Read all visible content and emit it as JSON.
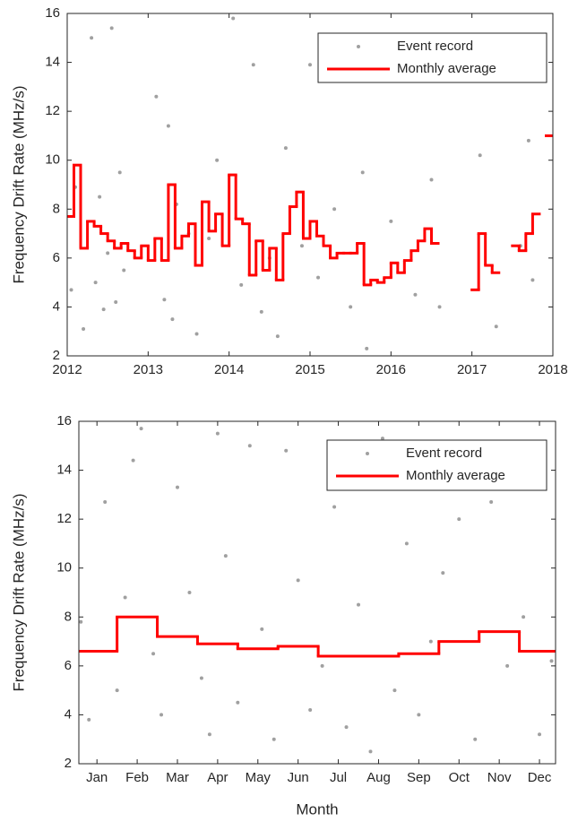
{
  "chart_data": [
    {
      "type": "scatter",
      "ylabel": "Frequency Drift Rate (MHz/s)",
      "xlim": [
        2012,
        2018
      ],
      "xticks": [
        2012,
        2013,
        2014,
        2015,
        2016,
        2017,
        2018
      ],
      "ylim": [
        2,
        16
      ],
      "yticks": [
        2,
        4,
        6,
        8,
        10,
        12,
        14,
        16
      ],
      "legend": "upper right",
      "series": [
        {
          "name": "Event record",
          "color": "#a0a0a0",
          "mode": "markers",
          "x": [
            2012.05,
            2012.1,
            2012.2,
            2012.3,
            2012.35,
            2012.4,
            2012.45,
            2012.5,
            2012.55,
            2012.6,
            2012.65,
            2012.7,
            2013.1,
            2013.2,
            2013.25,
            2013.3,
            2013.35,
            2013.5,
            2013.6,
            2013.75,
            2013.85,
            2014.05,
            2014.15,
            2014.3,
            2014.4,
            2014.5,
            2014.6,
            2014.7,
            2014.9,
            2015.0,
            2015.1,
            2015.3,
            2015.5,
            2015.65,
            2015.7,
            2016.0,
            2016.3,
            2016.5,
            2016.6,
            2017.1,
            2017.3,
            2017.6,
            2017.7,
            2017.75,
            2017.85
          ],
          "values": [
            4.7,
            8.9,
            3.1,
            15.0,
            5.0,
            8.5,
            3.9,
            6.2,
            15.4,
            4.2,
            9.5,
            5.5,
            12.6,
            4.3,
            11.4,
            3.5,
            8.2,
            7.0,
            2.9,
            6.8,
            10.0,
            15.8,
            4.9,
            13.9,
            3.8,
            6.0,
            2.8,
            10.5,
            6.5,
            13.9,
            5.2,
            8.0,
            4.0,
            9.5,
            2.3,
            7.5,
            4.5,
            9.2,
            4.0,
            10.2,
            3.2,
            6.5,
            10.8,
            5.1,
            13.9
          ]
        },
        {
          "name": "Monthly average",
          "color": "#ff0000",
          "mode": "steps",
          "x": [
            2012,
            2012.083,
            2012.167,
            2012.25,
            2012.333,
            2012.417,
            2012.5,
            2012.583,
            2012.667,
            2012.75,
            2012.833,
            2012.917,
            2013,
            2013.083,
            2013.167,
            2013.25,
            2013.333,
            2013.417,
            2013.5,
            2013.583,
            2013.667,
            2013.75,
            2013.833,
            2013.917,
            2014,
            2014.083,
            2014.167,
            2014.25,
            2014.333,
            2014.417,
            2014.5,
            2014.583,
            2014.667,
            2014.75,
            2014.833,
            2014.917,
            2015,
            2015.083,
            2015.167,
            2015.25,
            2015.333,
            2015.417,
            2015.5,
            2015.583,
            2015.667,
            2015.75,
            2015.833,
            2015.917,
            2016,
            2016.083,
            2016.167,
            2016.25,
            2016.333,
            2016.417,
            2016.5,
            2016.583,
            2016.667,
            2016.75,
            2016.833,
            2016.917,
            2017,
            2017.083,
            2017.167,
            2017.25,
            2017.333,
            2017.417,
            2017.5,
            2017.583,
            2017.667,
            2017.75,
            2017.833,
            2017.917
          ],
          "values": [
            7.7,
            9.8,
            6.4,
            7.5,
            7.3,
            7.0,
            6.7,
            6.4,
            6.6,
            6.3,
            6.0,
            6.5,
            5.9,
            6.8,
            5.9,
            9.0,
            6.4,
            6.9,
            7.4,
            5.7,
            8.3,
            7.1,
            7.8,
            6.5,
            9.4,
            7.6,
            7.4,
            5.3,
            6.7,
            5.5,
            6.4,
            5.1,
            7.0,
            8.1,
            8.7,
            6.8,
            7.5,
            6.9,
            6.5,
            6.0,
            6.2,
            6.2,
            6.2,
            6.6,
            4.9,
            5.1,
            5.0,
            5.2,
            5.8,
            5.4,
            5.9,
            6.3,
            6.7,
            7.2,
            6.6,
            null,
            null,
            null,
            null,
            null,
            4.7,
            7.0,
            5.7,
            5.4,
            null,
            null,
            6.5,
            6.3,
            7.0,
            7.8,
            null,
            11.0
          ]
        }
      ]
    },
    {
      "type": "scatter",
      "ylabel": "Frequency Drift Rate (MHz/s)",
      "xlabel": "Month",
      "xlim": [
        0.55,
        12.4
      ],
      "xticks": [
        {
          "value": 1,
          "label": "Jan"
        },
        {
          "value": 2,
          "label": "Feb"
        },
        {
          "value": 3,
          "label": "Mar"
        },
        {
          "value": 4,
          "label": "Apr"
        },
        {
          "value": 5,
          "label": "May"
        },
        {
          "value": 6,
          "label": "Jun"
        },
        {
          "value": 7,
          "label": "Jul"
        },
        {
          "value": 8,
          "label": "Aug"
        },
        {
          "value": 9,
          "label": "Sep"
        },
        {
          "value": 10,
          "label": "Oct"
        },
        {
          "value": 11,
          "label": "Nov"
        },
        {
          "value": 12,
          "label": "Dec"
        }
      ],
      "ylim": [
        2,
        16
      ],
      "yticks": [
        2,
        4,
        6,
        8,
        10,
        12,
        14,
        16
      ],
      "legend": "upper right",
      "series": [
        {
          "name": "Event record",
          "color": "#a0a0a0",
          "mode": "markers",
          "x": [
            0.6,
            0.8,
            1.2,
            1.5,
            1.7,
            1.9,
            2.1,
            2.4,
            2.6,
            3.0,
            3.3,
            3.6,
            3.8,
            4.0,
            4.2,
            4.5,
            4.8,
            5.1,
            5.4,
            5.7,
            6.0,
            6.3,
            6.6,
            6.9,
            7.2,
            7.5,
            7.8,
            8.1,
            8.4,
            8.7,
            9.0,
            9.3,
            9.6,
            10.0,
            10.4,
            10.8,
            11.2,
            11.6,
            12.0,
            12.3
          ],
          "values": [
            7.8,
            3.8,
            12.7,
            5.0,
            8.8,
            14.4,
            15.7,
            6.5,
            4.0,
            13.3,
            9.0,
            5.5,
            3.2,
            15.5,
            10.5,
            4.5,
            15.0,
            7.5,
            3.0,
            14.8,
            9.5,
            4.2,
            6.0,
            12.5,
            3.5,
            8.5,
            2.5,
            15.3,
            5.0,
            11.0,
            4.0,
            7.0,
            9.8,
            12.0,
            3.0,
            12.7,
            6.0,
            8.0,
            3.2,
            6.2
          ]
        },
        {
          "name": "Monthly average",
          "color": "#ff0000",
          "mode": "centered-steps",
          "x": [
            1,
            2,
            3,
            4,
            5,
            6,
            7,
            8,
            9,
            10,
            11,
            12
          ],
          "values": [
            6.6,
            8.0,
            7.2,
            6.9,
            6.7,
            6.8,
            6.4,
            6.4,
            6.5,
            7.0,
            7.4,
            6.6
          ]
        }
      ]
    }
  ]
}
